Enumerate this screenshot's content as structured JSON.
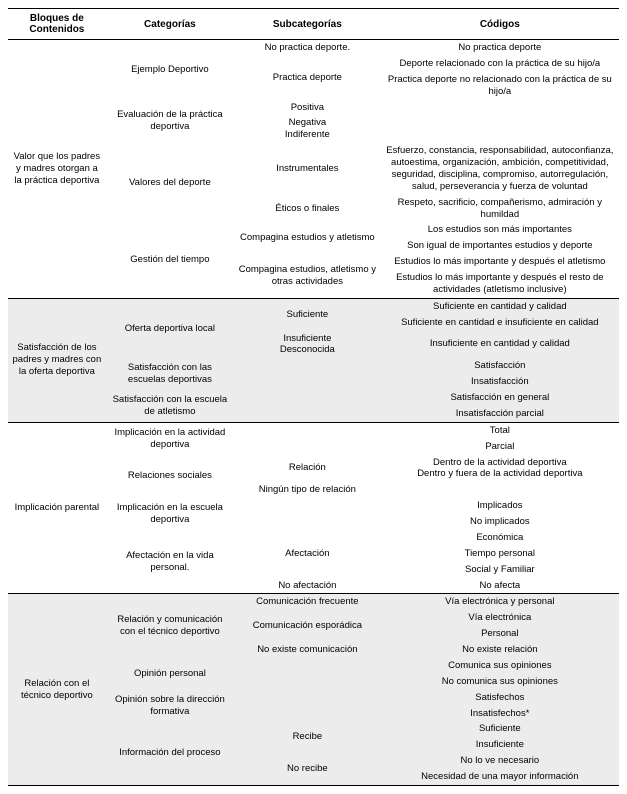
{
  "headers": {
    "c1": "Bloques de Contenidos",
    "c2": "Categorías",
    "c3": "Subcategorías",
    "c4": "Códigos"
  },
  "b1": {
    "title": "Valor que los padres y madres otorgan a la práctica deportiva",
    "cat1": "Ejemplo Deportivo",
    "cat1_s1": "No practica deporte.",
    "cat1_s1_c1": "No practica deporte",
    "cat1_s2": "Practica deporte",
    "cat1_s2_c1": "Deporte relacionado con la práctica de su hijo/a",
    "cat1_s2_c2": "Practica deporte no relacionado con la práctica de su hijo/a",
    "cat2": "Evaluación de la práctica deportiva",
    "cat2_s1": "Positiva",
    "cat2_s2": "Negativa",
    "cat2_s3": "Indiferente",
    "cat3": "Valores del deporte",
    "cat3_s1": "Instrumentales",
    "cat3_s1_c1": "Esfuerzo, constancia, responsabilidad, autoconfianza, autoestima, organización, ambición, competitividad, seguridad, disciplina, compromiso, autorregulación, salud, perseverancia y fuerza de voluntad",
    "cat3_s2": "Éticos o finales",
    "cat3_s2_c1": "Respeto, sacrificio, compañerismo, admiración y humildad",
    "cat4": "Gestión del tiempo",
    "cat4_s1": "Compagina estudios y atletismo",
    "cat4_s1_c1": "Los estudios son más importantes",
    "cat4_s1_c2": "Son igual de importantes estudios y deporte",
    "cat4_s2": "Compagina estudios, atletismo y otras actividades",
    "cat4_s2_c1": "Estudios lo más importante y después el atletismo",
    "cat4_s2_c2": "Estudios lo más importante y después el resto de actividades (atletismo inclusive)"
  },
  "b2": {
    "title": "Satisfacción de los padres y madres con la oferta deportiva",
    "cat1": "Oferta deportiva local",
    "cat1_s1": "Suficiente",
    "cat1_s1_c1": "Suficiente en cantidad y calidad",
    "cat1_s1_c2": "Suficiente en cantidad e insuficiente en calidad",
    "cat1_s2": "Insuficiente",
    "cat1_s2_c1": "Insuficiente en cantidad y calidad",
    "cat1_s3": "Desconocida",
    "cat2": "Satisfacción con las escuelas deportivas",
    "cat2_c1": "Satisfacción",
    "cat2_c2": "Insatisfacción",
    "cat3": "Satisfacción con la escuela de atletismo",
    "cat3_c1": "Satisfacción en general",
    "cat3_c2": "Insatisfacción parcial"
  },
  "b3": {
    "title": "Implicación parental",
    "cat1": "Implicación en la actividad deportiva",
    "cat1_c1": "Total",
    "cat1_c2": "Parcial",
    "cat2": "Relaciones sociales",
    "cat2_s1": "Relación",
    "cat2_s1_c1": "Dentro de la actividad deportiva",
    "cat2_s1_c2": "Dentro y fuera de la actividad deportiva",
    "cat2_s2": "Ningún tipo de relación",
    "cat3": "Implicación en la escuela deportiva",
    "cat3_c1": "Implicados",
    "cat3_c2": "No implicados",
    "cat4": "Afectación en la vida personal.",
    "cat4_s1": "Afectación",
    "cat4_s1_c1": "Económica",
    "cat4_s1_c2": "Tiempo personal",
    "cat4_s1_c3": "Social y Familiar",
    "cat4_s2": "No afectación",
    "cat4_s2_c1": "No afecta"
  },
  "b4": {
    "title": "Relación con el técnico deportivo",
    "cat1": "Relación y comunicación con el técnico deportivo",
    "cat1_s1": "Comunicación frecuente",
    "cat1_s1_c1": "Vía electrónica y personal",
    "cat1_s2": "Comunicación esporádica",
    "cat1_s2_c1": "Vía electrónica",
    "cat1_s2_c2": "Personal",
    "cat1_s3": "No existe comunicación",
    "cat1_s3_c1": "No existe relación",
    "cat2": "Opinión personal",
    "cat2_c1": "Comunica sus opiniones",
    "cat2_c2": "No comunica sus opiniones",
    "cat3": "Opinión sobre la dirección formativa",
    "cat3_c1": "Satisfechos",
    "cat3_c2": "Insatisfechos*",
    "cat4": "Información del proceso",
    "cat4_s1": "Recibe",
    "cat4_s1_c1": "Suficiente",
    "cat4_s1_c2": "Insuficiente",
    "cat4_s2": "No recibe",
    "cat4_s2_c1": "No lo ve necesario",
    "cat4_s2_c2": "Necesidad de una mayor información"
  }
}
